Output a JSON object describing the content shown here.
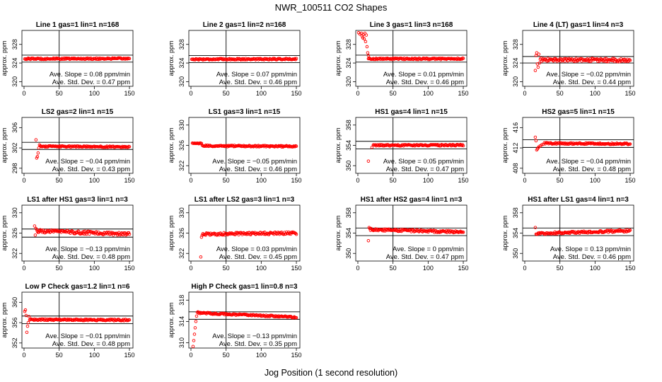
{
  "figure": {
    "title": "NWR_100511  CO2 Shapes",
    "xlabel": "Jog Position (1 second resolution)",
    "slope_prefix": "Ave. Slope = ",
    "slope_unit": " ppm/min",
    "sd_prefix": "Ave. Std. Dev. = ",
    "sd_unit": " ppm",
    "point_color": "#ff0000",
    "line_color": "#000000"
  },
  "chart_data": [
    {
      "type": "scatter",
      "title": "Line 1 gas=1 lin=1 n=168",
      "ylabel": "approx. ppm",
      "xlim": [
        -3,
        155
      ],
      "ylim": [
        319,
        331
      ],
      "xticks": [
        0,
        50,
        100,
        150
      ],
      "yticks": [
        320,
        324,
        328
      ],
      "hlines": [
        325.7,
        324.2
      ],
      "vline": 50,
      "slope": "0.08",
      "sd": "0.47",
      "series": [
        {
          "x_start": 1,
          "x_end": 150,
          "base": 324.9,
          "base_end": 324.95,
          "noise": 0.15,
          "spikes": []
        }
      ]
    },
    {
      "type": "scatter",
      "title": "Line 2 gas=1 lin=2 n=168",
      "ylabel": "approx. ppm",
      "xlim": [
        -3,
        155
      ],
      "ylim": [
        319,
        331
      ],
      "xticks": [
        0,
        50,
        100,
        150
      ],
      "yticks": [
        320,
        324,
        328
      ],
      "hlines": [
        325.6,
        324.1
      ],
      "vline": 50,
      "slope": "0.07",
      "sd": "0.46",
      "series": [
        {
          "x_start": 1,
          "x_end": 150,
          "base": 324.8,
          "base_end": 324.85,
          "noise": 0.15,
          "spikes": []
        }
      ]
    },
    {
      "type": "scatter",
      "title": "Line 3 gas=1 lin=3 n=168",
      "ylabel": "approx. ppm",
      "xlim": [
        -3,
        155
      ],
      "ylim": [
        319,
        331
      ],
      "xticks": [
        0,
        50,
        100,
        150
      ],
      "yticks": [
        320,
        324,
        328
      ],
      "hlines": [
        325.7,
        324.2
      ],
      "vline": 50,
      "slope": "0.01",
      "sd": "0.46",
      "series": [
        {
          "x_start": 15,
          "x_end": 150,
          "base": 324.9,
          "base_end": 324.9,
          "noise": 0.15,
          "spikes": [
            [
              1,
              330.5
            ],
            [
              3,
              330.2
            ],
            [
              5,
              330.4
            ],
            [
              6,
              329.8
            ],
            [
              7,
              329.4
            ],
            [
              8,
              330.1
            ],
            [
              9,
              329.2
            ],
            [
              10,
              330.4
            ],
            [
              11,
              328.6
            ],
            [
              12,
              330.0
            ],
            [
              13,
              327.5
            ],
            [
              14,
              326.2
            ],
            [
              15,
              325.6
            ]
          ]
        }
      ]
    },
    {
      "type": "scatter",
      "title": "Line 4 (LT) gas=1 lin=4 n=3",
      "ylabel": "approx. ppm",
      "xlim": [
        -3,
        155
      ],
      "ylim": [
        319,
        331
      ],
      "xticks": [
        0,
        50,
        100,
        150
      ],
      "yticks": [
        320,
        324,
        328
      ],
      "hlines": [
        325.4,
        324.0
      ],
      "vline": 50,
      "slope": "−0.02",
      "sd": "0.44",
      "series": [
        {
          "x_start": 22,
          "x_end": 150,
          "base": 324.7,
          "base_end": 324.6,
          "noise": 0.35,
          "spikes": [
            [
              15,
              322.4
            ],
            [
              16,
              325.6
            ],
            [
              17,
              326.2
            ],
            [
              18,
              323.8
            ],
            [
              19,
              323.1
            ],
            [
              20,
              325.9
            ],
            [
              21,
              324.0
            ]
          ]
        }
      ]
    },
    {
      "type": "scatter",
      "title": "LS2 gas=2 lin=1 n=15",
      "ylabel": "approx. ppm",
      "xlim": [
        -3,
        155
      ],
      "ylim": [
        297,
        308
      ],
      "xticks": [
        0,
        50,
        100,
        150
      ],
      "yticks": [
        298,
        302,
        306
      ],
      "hlines": [
        303.1,
        301.7
      ],
      "vline": 50,
      "slope": "−0.04",
      "sd": "0.43",
      "series": [
        {
          "x_start": 24,
          "x_end": 150,
          "base": 302.3,
          "base_end": 302.2,
          "noise": 0.12,
          "spikes": [
            [
              17,
              303.6
            ],
            [
              18,
              300.0
            ],
            [
              19,
              300.3
            ],
            [
              20,
              301.0
            ],
            [
              21,
              302.0
            ],
            [
              22,
              302.6
            ],
            [
              23,
              302.4
            ]
          ]
        }
      ]
    },
    {
      "type": "scatter",
      "title": "LS1 gas=3 lin=1 n=15",
      "ylabel": "approx. ppm",
      "xlim": [
        -3,
        155
      ],
      "ylim": [
        320.5,
        331.5
      ],
      "xticks": [
        0,
        50,
        100,
        150
      ],
      "yticks": [
        322,
        326,
        330
      ],
      "hlines": [],
      "vline": 50,
      "slope": "−0.05",
      "sd": "0.46",
      "series": [
        {
          "x_start": 2,
          "x_end": 15,
          "base": 326.4,
          "base_end": 326.4,
          "noise": 0.08,
          "spikes": []
        },
        {
          "x_start": 16,
          "x_end": 150,
          "base": 325.9,
          "base_end": 325.8,
          "noise": 0.14,
          "spikes": []
        }
      ]
    },
    {
      "type": "scatter",
      "title": "HS1 gas=4 lin=1 n=15",
      "ylabel": "approx. ppm",
      "xlim": [
        -3,
        155
      ],
      "ylim": [
        348.5,
        359.5
      ],
      "xticks": [
        0,
        50,
        100,
        150
      ],
      "yticks": [
        350,
        354,
        358
      ],
      "hlines": [
        354.8,
        353.3
      ],
      "vline": 50,
      "slope": "0.05",
      "sd": "0.47",
      "series": [
        {
          "x_start": 22,
          "x_end": 150,
          "base": 354.0,
          "base_end": 354.05,
          "noise": 0.14,
          "spikes": [
            [
              15,
              350.9
            ],
            [
              20,
              353.6
            ]
          ]
        }
      ]
    },
    {
      "type": "scatter",
      "title": "HS2 gas=5 lin=1 n=15",
      "ylabel": "approx. ppm",
      "xlim": [
        -3,
        155
      ],
      "ylim": [
        407,
        418
      ],
      "xticks": [
        0,
        50,
        100,
        150
      ],
      "yticks": [
        408,
        412,
        416
      ],
      "hlines": [
        413.6,
        412.1
      ],
      "vline": 50,
      "slope": "−0.04",
      "sd": "0.48",
      "series": [
        {
          "x_start": 28,
          "x_end": 150,
          "base": 412.9,
          "base_end": 412.8,
          "noise": 0.14,
          "spikes": [
            [
              15,
              414.1
            ],
            [
              16,
              413.4
            ],
            [
              17,
              411.6
            ],
            [
              18,
              411.8
            ],
            [
              19,
              412.0
            ],
            [
              20,
              412.2
            ],
            [
              22,
              412.4
            ],
            [
              24,
              412.6
            ],
            [
              26,
              412.7
            ]
          ]
        }
      ]
    },
    {
      "type": "scatter",
      "title": "LS1 after HS1 gas=3 lin=1 n=3",
      "ylabel": "approx. ppm",
      "xlim": [
        -3,
        155
      ],
      "ylim": [
        320.5,
        331.5
      ],
      "xticks": [
        0,
        50,
        100,
        150
      ],
      "yticks": [
        322,
        326,
        330
      ],
      "hlines": [
        326.8,
        325.2
      ],
      "vline": 50,
      "slope": "−0.13",
      "sd": "0.48",
      "series": [
        {
          "x_start": 18,
          "x_end": 150,
          "base": 326.4,
          "base_end": 325.8,
          "noise": 0.3,
          "spikes": [
            [
              15,
              327.4
            ],
            [
              16,
              325.6
            ],
            [
              17,
              326.9
            ]
          ]
        }
      ]
    },
    {
      "type": "scatter",
      "title": "LS1 after LS2 gas=3 lin=1 n=3",
      "ylabel": "approx. ppm",
      "xlim": [
        -3,
        155
      ],
      "ylim": [
        320.5,
        331.5
      ],
      "xticks": [
        0,
        50,
        100,
        150
      ],
      "yticks": [
        322,
        326,
        330
      ],
      "hlines": [],
      "vline": 50,
      "slope": "0.03",
      "sd": "0.45",
      "series": [
        {
          "x_start": 16,
          "x_end": 150,
          "base": 325.8,
          "base_end": 326.0,
          "noise": 0.25,
          "spikes": [
            [
              14,
              321.3
            ],
            [
              15,
              325.2
            ]
          ]
        }
      ]
    },
    {
      "type": "scatter",
      "title": "HS1 after HS2 gas=4 lin=1 n=3",
      "ylabel": "approx. ppm",
      "xlim": [
        -3,
        155
      ],
      "ylim": [
        348.5,
        359.5
      ],
      "xticks": [
        0,
        50,
        100,
        150
      ],
      "yticks": [
        350,
        354,
        358
      ],
      "hlines": [
        355.0,
        353.5
      ],
      "vline": 50,
      "slope": "0",
      "sd": "0.47",
      "series": [
        {
          "x_start": 18,
          "x_end": 150,
          "base": 354.7,
          "base_end": 354.2,
          "noise": 0.22,
          "spikes": [
            [
              15,
              352.5
            ],
            [
              16,
              355.1
            ],
            [
              17,
              354.9
            ]
          ]
        }
      ]
    },
    {
      "type": "scatter",
      "title": "HS1 after LS1 gas=4 lin=1 n=3",
      "ylabel": "approx. ppm",
      "xlim": [
        -3,
        155
      ],
      "ylim": [
        348.5,
        359.5
      ],
      "xticks": [
        0,
        50,
        100,
        150
      ],
      "yticks": [
        350,
        354,
        358
      ],
      "hlines": [
        355.0,
        353.5
      ],
      "vline": 50,
      "slope": "0.13",
      "sd": "0.46",
      "series": [
        {
          "x_start": 17,
          "x_end": 150,
          "base": 353.9,
          "base_end": 354.5,
          "noise": 0.22,
          "spikes": [
            [
              15,
              355.1
            ],
            [
              16,
              353.8
            ]
          ]
        }
      ]
    },
    {
      "type": "scatter",
      "title": "Low P Check gas=1.2 lin=1 n=6",
      "ylabel": "approx. ppm",
      "xlim": [
        -3,
        155
      ],
      "ylim": [
        351,
        362
      ],
      "xticks": [
        0,
        50,
        100,
        150
      ],
      "yticks": [
        352,
        356,
        360
      ],
      "hlines": [
        357.3,
        355.8
      ],
      "vline": 50,
      "slope": "−0.01",
      "sd": "0.48",
      "series": [
        {
          "x_start": 8,
          "x_end": 150,
          "base": 356.6,
          "base_end": 356.5,
          "noise": 0.15,
          "spikes": [
            [
              1,
              358.2
            ],
            [
              2,
              358.5
            ],
            [
              3,
              357.4
            ],
            [
              4,
              354.1
            ],
            [
              5,
              355.3
            ],
            [
              6,
              356.0
            ],
            [
              7,
              357.2
            ]
          ]
        }
      ]
    },
    {
      "type": "scatter",
      "title": "High P Check gas=1 lin=0.8 n=3",
      "ylabel": "approx. ppm",
      "xlim": [
        -3,
        155
      ],
      "ylim": [
        309,
        319.5
      ],
      "xticks": [
        0,
        50,
        100,
        150
      ],
      "yticks": [
        310,
        314,
        318
      ],
      "hlines": [
        315.8,
        314.4
      ],
      "vline": 50,
      "slope": "−0.13",
      "sd": "0.35",
      "series": [
        {
          "x_start": 11,
          "x_end": 150,
          "base": 315.6,
          "base_end": 314.8,
          "noise": 0.14,
          "spikes": [
            [
              3,
              309.3
            ],
            [
              4,
              310.4
            ],
            [
              5,
              311.6
            ],
            [
              6,
              312.8
            ],
            [
              7,
              314.0
            ],
            [
              8,
              315.0
            ],
            [
              9,
              315.7
            ],
            [
              10,
              315.8
            ]
          ]
        }
      ]
    }
  ]
}
